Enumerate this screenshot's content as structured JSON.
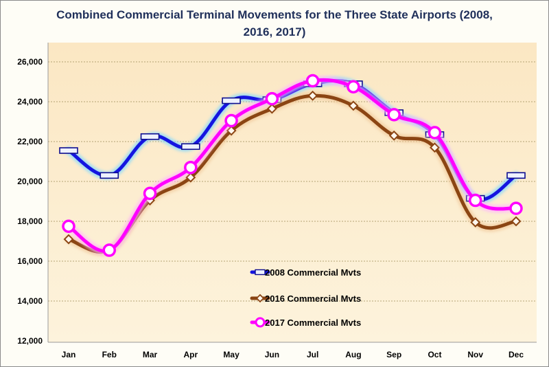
{
  "chart_data": {
    "type": "line",
    "title": "Combined Commercial Terminal Movements for the Three State Airports (2008, 2016, 2017)",
    "xlabel": "",
    "ylabel": "",
    "categories": [
      "Jan",
      "Feb",
      "Mar",
      "Apr",
      "May",
      "Jun",
      "Jul",
      "Aug",
      "Sep",
      "Oct",
      "Nov",
      "Dec"
    ],
    "ylim": [
      12000,
      26000
    ],
    "yticks": [
      12000,
      14000,
      16000,
      18000,
      20000,
      22000,
      24000,
      26000
    ],
    "ytick_labels": [
      "12,000",
      "14,000",
      "16,000",
      "18,000",
      "20,000",
      "22,000",
      "24,000",
      "26,000"
    ],
    "grid": "horizontal",
    "legend_position": "center-bottom",
    "series": [
      {
        "name": "2008 Commercial Mvts",
        "color": "#1515e0",
        "marker": "dash",
        "values": [
          21550,
          20300,
          22250,
          21750,
          24050,
          24100,
          24900,
          24900,
          23450,
          22350,
          19150,
          20300
        ]
      },
      {
        "name": "2016 Commercial Mvts",
        "color": "#8b4513",
        "marker": "diamond",
        "values": [
          17100,
          16550,
          19050,
          20200,
          22550,
          23650,
          24300,
          23800,
          22300,
          21700,
          17950,
          18000
        ]
      },
      {
        "name": "2017 Commercial Mvts",
        "color": "#ff00ff",
        "marker": "circle",
        "values": [
          17750,
          16550,
          19400,
          20700,
          23050,
          24150,
          25050,
          24750,
          23350,
          22450,
          19050,
          18650
        ]
      }
    ]
  }
}
